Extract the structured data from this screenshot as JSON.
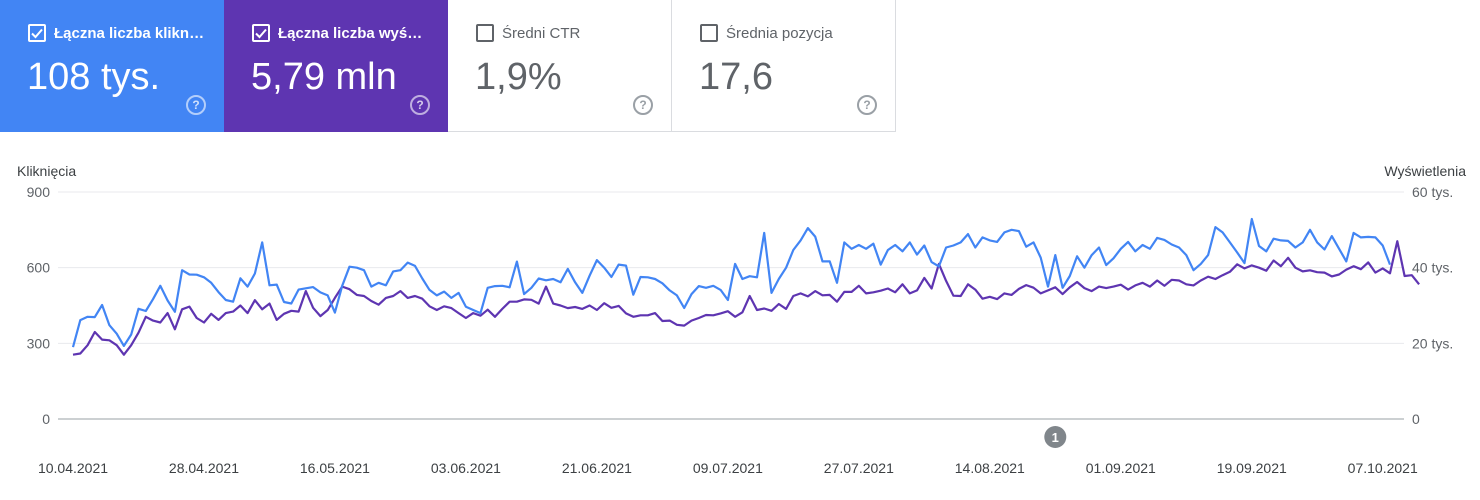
{
  "cards": [
    {
      "label": "Łączna liczba kliknięć",
      "value": "108 tys.",
      "checked": true,
      "color": "#4285f4"
    },
    {
      "label": "Łączna liczba wyświetleń",
      "value": "5,79 mln",
      "checked": true,
      "color": "#5e35b1"
    },
    {
      "label": "Średni CTR",
      "value": "1,9%",
      "checked": false,
      "color": "#ffffff"
    },
    {
      "label": "Średnia pozycja",
      "value": "17,6",
      "checked": false,
      "color": "#ffffff"
    }
  ],
  "help_glyph": "?",
  "chart_data": {
    "type": "line",
    "ylabel_left": "Kliknięcia",
    "ylabel_right": "Wyświetlenia",
    "y_left": {
      "min": 0,
      "max": 900,
      "ticks": [
        0,
        300,
        600,
        900
      ],
      "tick_labels": [
        "0",
        "300",
        "600",
        "900"
      ]
    },
    "y_right": {
      "min": 0,
      "max": 60000,
      "ticks": [
        0,
        20000,
        40000,
        60000
      ],
      "tick_labels": [
        "0",
        "20 tys.",
        "40 tys.",
        "60 tys."
      ]
    },
    "x_start": "2021-04-10",
    "x_tick_labels": [
      "10.04.2021",
      "28.04.2021",
      "16.05.2021",
      "03.06.2021",
      "21.06.2021",
      "09.07.2021",
      "27.07.2021",
      "14.08.2021",
      "01.09.2021",
      "19.09.2021",
      "07.10.2021"
    ],
    "grid": true,
    "annotation": {
      "label": "1",
      "date": "2021-08-23"
    },
    "series": [
      {
        "name": "Kliknięcia",
        "axis": "left",
        "color": "#4285f4",
        "values": [
          285,
          392,
          405,
          404,
          452,
          372,
          338,
          290,
          335,
          437,
          428,
          475,
          528,
          470,
          425,
          590,
          573,
          572,
          562,
          540,
          503,
          472,
          465,
          558,
          525,
          577,
          700,
          530,
          533,
          464,
          458,
          513,
          518,
          523,
          502,
          490,
          422,
          528,
          604,
          600,
          590,
          525,
          540,
          530,
          585,
          590,
          620,
          607,
          557,
          512,
          490,
          505,
          480,
          500,
          445,
          432,
          420,
          520,
          527,
          528,
          522,
          624,
          495,
          520,
          557,
          550,
          555,
          542,
          595,
          542,
          500,
          568,
          630,
          600,
          563,
          612,
          608,
          493,
          563,
          562,
          555,
          538,
          510,
          490,
          440,
          495,
          527,
          520,
          528,
          512,
          472,
          615,
          555,
          566,
          562,
          738,
          500,
          555,
          600,
          670,
          708,
          757,
          723,
          625,
          625,
          540,
          700,
          675,
          690,
          675,
          695,
          612,
          670,
          690,
          665,
          700,
          652,
          688,
          622,
          605,
          680,
          688,
          700,
          733,
          680,
          720,
          708,
          702,
          740,
          750,
          745,
          683,
          700,
          640,
          525,
          650,
          520,
          567,
          645,
          600,
          650,
          680,
          610,
          637,
          675,
          702,
          665,
          690,
          675,
          718,
          710,
          692,
          680,
          650,
          590,
          615,
          650,
          761,
          740,
          700,
          660,
          618,
          793,
          686,
          665,
          715,
          708,
          706,
          680,
          700,
          750,
          700,
          672,
          725,
          675,
          625,
          738,
          720,
          722,
          720,
          688,
          612
        ]
      },
      {
        "name": "Wyświetlenia",
        "axis": "right",
        "color": "#5e35b1",
        "values": [
          17000,
          17300,
          19500,
          23000,
          21000,
          20800,
          19500,
          17000,
          19500,
          22800,
          27000,
          26000,
          25500,
          28000,
          23700,
          29000,
          29700,
          26700,
          25500,
          27800,
          26200,
          28000,
          28400,
          30000,
          28000,
          31400,
          29000,
          30500,
          26200,
          27800,
          28600,
          28400,
          33800,
          29400,
          27200,
          28800,
          32000,
          35000,
          34300,
          32800,
          32500,
          31200,
          30200,
          32000,
          32500,
          33800,
          32000,
          32500,
          31800,
          29800,
          28800,
          29800,
          29300,
          28000,
          26700,
          28000,
          27300,
          28900,
          27000,
          29100,
          31000,
          31000,
          31600,
          31500,
          30500,
          35000,
          30500,
          30000,
          29300,
          29600,
          29100,
          30000,
          28800,
          30600,
          29400,
          29900,
          27900,
          27000,
          27400,
          27400,
          28000,
          25900,
          26000,
          24900,
          24700,
          26000,
          26700,
          27500,
          27400,
          27900,
          28500,
          27000,
          28200,
          32500,
          28800,
          29200,
          28600,
          30400,
          29100,
          32500,
          33200,
          32400,
          33800,
          32700,
          32800,
          31000,
          33600,
          33600,
          35200,
          33200,
          33500,
          33900,
          34500,
          33500,
          35600,
          33200,
          34000,
          37300,
          34500,
          41000,
          36500,
          32600,
          32500,
          35600,
          34200,
          31800,
          32300,
          31700,
          33200,
          32800,
          34400,
          35400,
          34700,
          33200,
          34000,
          34800,
          33000,
          34800,
          36200,
          34600,
          33800,
          35000,
          34600,
          35000,
          35500,
          34200,
          35300,
          36000,
          35000,
          36600,
          35200,
          36800,
          36600,
          35600,
          35300,
          36600,
          37600,
          37000,
          38000,
          38900,
          40900,
          39800,
          40600,
          40000,
          39200,
          41900,
          40400,
          42600,
          40000,
          39000,
          39300,
          38800,
          38700,
          37700,
          38200,
          39500,
          40400,
          39600,
          41400,
          38700,
          39800,
          38500,
          47000,
          37800,
          38000,
          35600
        ]
      }
    ]
  }
}
